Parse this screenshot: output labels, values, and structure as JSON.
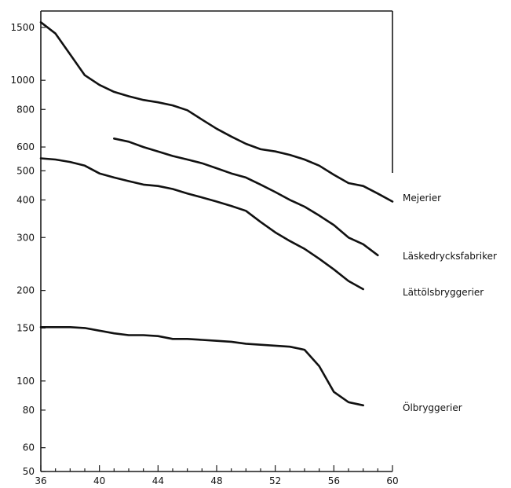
{
  "chart_data": {
    "type": "line",
    "title": "",
    "xlabel": "",
    "ylabel": "",
    "y_scale": "log",
    "xlim": [
      36,
      60
    ],
    "ylim": [
      50,
      1700
    ],
    "x_ticks": [
      36,
      40,
      44,
      48,
      52,
      56,
      60
    ],
    "x_tick_labels": [
      "36",
      "40",
      "44",
      "48",
      "52",
      "56",
      "60"
    ],
    "y_ticks": [
      50,
      60,
      80,
      100,
      150,
      200,
      300,
      400,
      500,
      600,
      800,
      1000,
      1500
    ],
    "y_tick_labels": [
      "50",
      "60",
      "80",
      "100",
      "150",
      "200",
      "300",
      "400",
      "500",
      "600",
      "800",
      "1000",
      "1500"
    ],
    "grid": false,
    "series": [
      {
        "name": "Mejerier",
        "x": [
          36,
          37,
          38,
          39,
          40,
          41,
          42,
          43,
          44,
          45,
          46,
          47,
          48,
          49,
          50,
          51,
          52,
          53,
          54,
          55,
          56,
          57,
          58,
          59,
          60
        ],
        "y": [
          1560,
          1430,
          1220,
          1040,
          965,
          915,
          885,
          860,
          845,
          825,
          795,
          740,
          690,
          650,
          615,
          590,
          580,
          565,
          545,
          520,
          485,
          455,
          445,
          420,
          395
        ]
      },
      {
        "name": "Läskedrycksfabriker",
        "x": [
          41,
          42,
          43,
          44,
          45,
          46,
          47,
          48,
          49,
          50,
          51,
          52,
          53,
          54,
          55,
          56,
          57,
          58,
          59
        ],
        "y": [
          640,
          625,
          600,
          580,
          560,
          545,
          530,
          510,
          490,
          475,
          450,
          425,
          400,
          380,
          355,
          330,
          300,
          285,
          262
        ]
      },
      {
        "name": "Lättölsbryggerier",
        "x": [
          36,
          37,
          38,
          39,
          40,
          41,
          42,
          43,
          44,
          45,
          46,
          47,
          48,
          49,
          50,
          51,
          52,
          53,
          54,
          55,
          56,
          57,
          58
        ],
        "y": [
          550,
          545,
          535,
          520,
          490,
          475,
          462,
          450,
          445,
          435,
          420,
          408,
          395,
          382,
          368,
          338,
          312,
          292,
          275,
          255,
          235,
          215,
          202
        ]
      },
      {
        "name": "Ölbryggerier",
        "x": [
          36,
          37,
          38,
          39,
          40,
          41,
          42,
          43,
          44,
          45,
          46,
          47,
          48,
          49,
          50,
          51,
          52,
          53,
          54,
          55,
          56,
          57,
          58
        ],
        "y": [
          151,
          151,
          151,
          150,
          147,
          144,
          142,
          142,
          141,
          138,
          138,
          137,
          136,
          135,
          133,
          132,
          131,
          130,
          127,
          112,
          92,
          85,
          83
        ]
      }
    ]
  }
}
